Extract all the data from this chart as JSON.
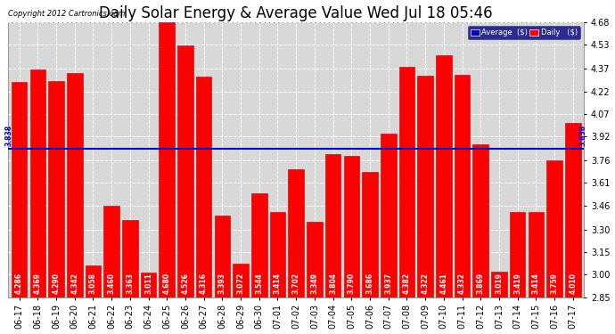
{
  "title": "Daily Solar Energy & Average Value Wed Jul 18 05:46",
  "copyright": "Copyright 2012 Cartronics.com",
  "categories": [
    "06-17",
    "06-18",
    "06-19",
    "06-20",
    "06-21",
    "06-22",
    "06-23",
    "06-24",
    "06-25",
    "06-26",
    "06-27",
    "06-28",
    "06-29",
    "06-30",
    "07-01",
    "07-02",
    "07-03",
    "07-04",
    "07-05",
    "07-06",
    "07-07",
    "07-08",
    "07-09",
    "07-10",
    "07-11",
    "07-12",
    "07-13",
    "07-14",
    "07-15",
    "07-16",
    "07-17"
  ],
  "values": [
    4.286,
    4.369,
    4.29,
    4.342,
    3.058,
    3.46,
    3.363,
    3.011,
    4.68,
    4.526,
    4.316,
    3.393,
    3.072,
    3.544,
    3.414,
    3.702,
    3.349,
    3.804,
    3.79,
    3.686,
    3.937,
    4.382,
    4.322,
    4.461,
    4.332,
    3.869,
    3.019,
    3.419,
    3.414,
    3.759,
    4.01
  ],
  "average_line": 3.838,
  "bar_color": "#ff0000",
  "bar_edge_color": "#bb0000",
  "average_color": "#0000cc",
  "ylim_min": 2.85,
  "ylim_max": 4.68,
  "yticks": [
    2.85,
    3.0,
    3.15,
    3.3,
    3.46,
    3.61,
    3.76,
    3.92,
    4.07,
    4.22,
    4.37,
    4.53,
    4.68
  ],
  "background_color": "#ffffff",
  "plot_bg_color": "#d8d8d8",
  "grid_color": "#ffffff",
  "title_fontsize": 12,
  "tick_fontsize": 7,
  "bar_label_fontsize": 5.5,
  "avg_label": "3.838",
  "legend_avg_color": "#0000cc",
  "legend_daily_color": "#ff0000"
}
